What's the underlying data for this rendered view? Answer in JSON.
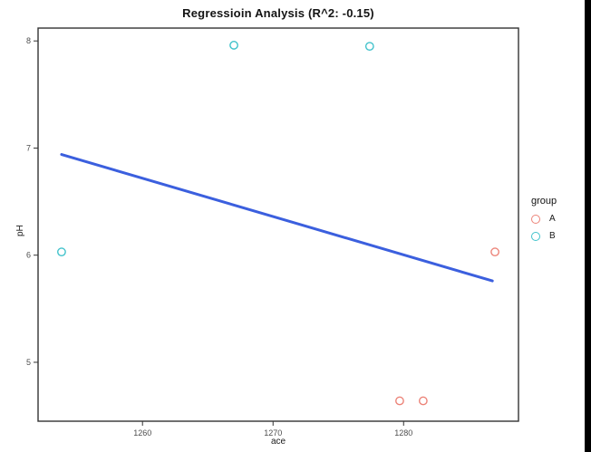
{
  "window": {
    "background": "#ffffff",
    "right_edge_bar_color": "#000000"
  },
  "chart_data": {
    "type": "scatter",
    "title": "Regressioin Analysis (R^2: -0.15)",
    "xlabel": "ace",
    "ylabel": "pH",
    "xlim": [
      1252.0,
      1288.8
    ],
    "ylim": [
      4.45,
      8.12
    ],
    "x_ticks": [
      1260,
      1270,
      1280
    ],
    "y_ticks": [
      5,
      6,
      7,
      8
    ],
    "grid": false,
    "panel_border_color": "#333333",
    "legend": {
      "title": "group",
      "position": "right",
      "entries": [
        {
          "label": "A",
          "color": "#EC8378"
        },
        {
          "label": "B",
          "color": "#40C2CB"
        }
      ]
    },
    "series": [
      {
        "name": "A",
        "color": "#EC8378",
        "points": [
          {
            "x": 1279.7,
            "y": 4.64
          },
          {
            "x": 1281.5,
            "y": 4.64
          },
          {
            "x": 1287.0,
            "y": 6.03
          }
        ]
      },
      {
        "name": "B",
        "color": "#40C2CB",
        "points": [
          {
            "x": 1253.8,
            "y": 6.03
          },
          {
            "x": 1267.0,
            "y": 7.96
          },
          {
            "x": 1277.4,
            "y": 7.95
          }
        ]
      }
    ],
    "regression_line": {
      "color": "#3B5FDE",
      "width": 3,
      "x1": 1253.8,
      "y1": 6.94,
      "x2": 1286.8,
      "y2": 5.76
    }
  }
}
